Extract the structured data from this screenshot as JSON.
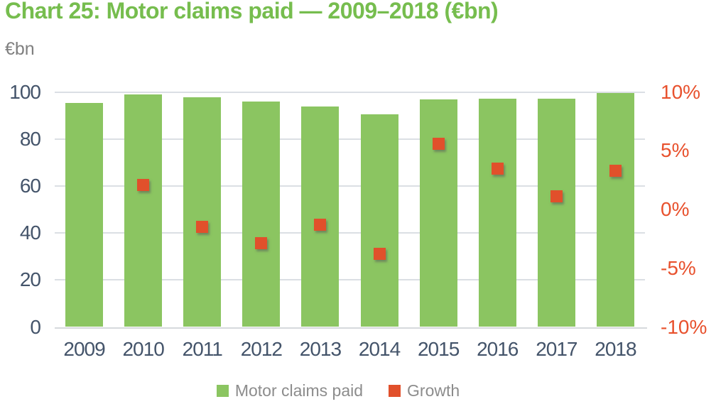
{
  "title": "Chart 25: Motor claims paid — 2009–2018 (€bn)",
  "colors": {
    "title_green": "#76BD4E",
    "bar_green": "#8BC561",
    "growth_red": "#E1502B",
    "right_axis_text": "#E8512D",
    "left_axis_text": "#44546A",
    "gridline": "#DBDFE4",
    "axis_line": "#D6D9DC",
    "unit_label_gray": "#7F7F7F",
    "legend_text_gray": "#8C8C8C"
  },
  "chart_data": {
    "type": "bar",
    "title": "Chart 25: Motor claims paid — 2009–2018 (€bn)",
    "categories": [
      "2009",
      "2010",
      "2011",
      "2012",
      "2013",
      "2014",
      "2015",
      "2016",
      "2017",
      "2018"
    ],
    "series": [
      {
        "name": "Motor claims paid",
        "type": "bar",
        "axis": "left",
        "color": "#8BC561",
        "values": [
          95.2,
          98.9,
          97.6,
          95.8,
          93.9,
          90.6,
          96.7,
          97.1,
          97.0,
          99.6
        ]
      },
      {
        "name": "Growth",
        "type": "scatter",
        "axis": "right",
        "color": "#E1502B",
        "values": [
          null,
          2.1,
          -1.5,
          -2.9,
          -1.3,
          -3.8,
          5.6,
          3.5,
          1.1,
          3.3
        ]
      }
    ],
    "left_axis": {
      "label": "€bn",
      "min": 0,
      "max": 100,
      "ticks": [
        0,
        20,
        40,
        60,
        80,
        100
      ]
    },
    "right_axis": {
      "min": -10,
      "max": 10,
      "ticks": [
        10,
        5,
        0,
        -5,
        -10
      ],
      "tick_labels": [
        "10%",
        "5%",
        "0%",
        "-5%",
        "-10%"
      ],
      "unit": "%"
    },
    "grid": true,
    "legend_position": "bottom"
  }
}
